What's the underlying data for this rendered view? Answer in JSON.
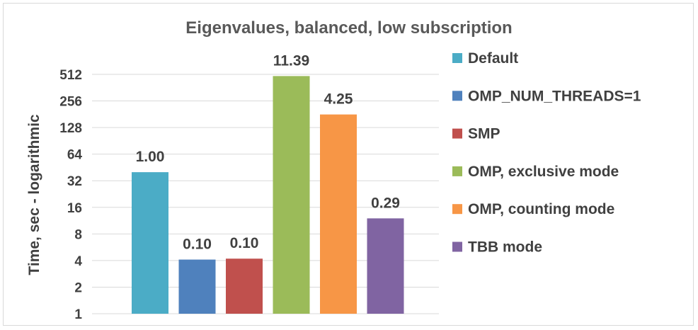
{
  "chart_data": {
    "type": "bar",
    "title": "Eigenvalues, balanced, low subscription",
    "ylabel": "Time, sec - logarithmic",
    "xlabel": "",
    "yscale": "log2",
    "ylim": [
      1,
      512
    ],
    "yticks": [
      "1",
      "2",
      "4",
      "8",
      "16",
      "32",
      "64",
      "128",
      "256",
      "512"
    ],
    "grid": "horizontal",
    "legend_position": "right",
    "series": [
      {
        "name": "Default",
        "value": 40,
        "label": "1.00",
        "color": "#4BACC6"
      },
      {
        "name": "OMP_NUM_THREADS=1",
        "value": 4.1,
        "label": "0.10",
        "color": "#4F81BD"
      },
      {
        "name": "SMP",
        "value": 4.2,
        "label": "0.10",
        "color": "#C0504D"
      },
      {
        "name": "OMP, exclusive mode",
        "value": 490,
        "label": "11.39",
        "color": "#9BBB59"
      },
      {
        "name": "OMP, counting mode",
        "value": 180,
        "label": "4.25",
        "color": "#F79646"
      },
      {
        "name": "TBB mode",
        "value": 12,
        "label": "0.29",
        "color": "#8064A2"
      }
    ]
  }
}
